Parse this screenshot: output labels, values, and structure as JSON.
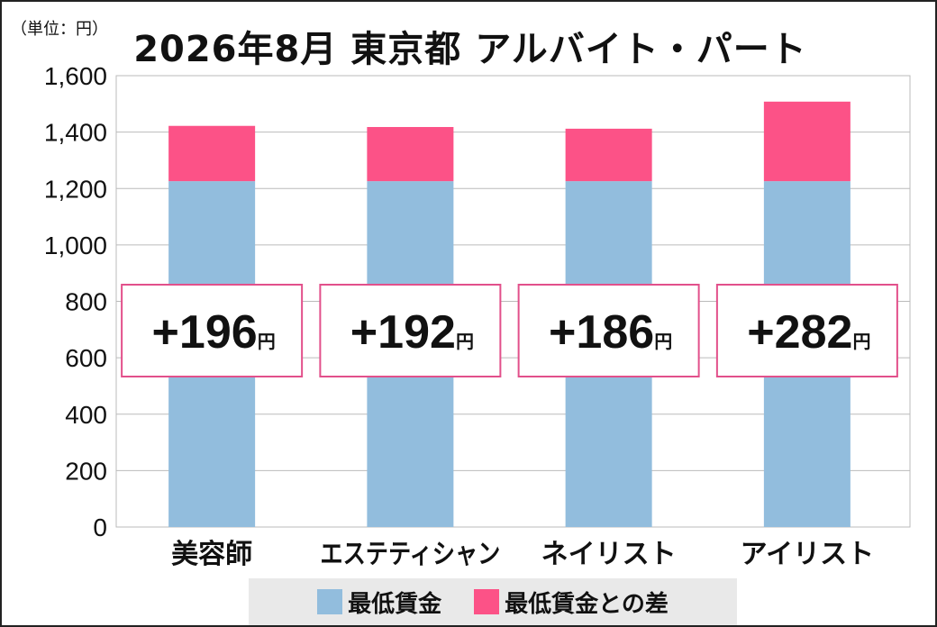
{
  "unit_label": "（単位：円）",
  "title": "2026年8月 東京都 アルバイト・パート",
  "colors": {
    "minimum_wage": "#92bddd",
    "difference": "#fc5287",
    "annotation_border": "#e2508b",
    "grid": "#bbbbbb"
  },
  "chart_data": {
    "type": "bar",
    "stacked": true,
    "categories": [
      "美容師",
      "エステティシャン",
      "ネイリスト",
      "アイリスト"
    ],
    "series": [
      {
        "name": "最低賃金",
        "values": [
          1226,
          1226,
          1226,
          1226
        ]
      },
      {
        "name": "最低賃金との差",
        "values": [
          196,
          192,
          186,
          282
        ]
      }
    ],
    "annotations": [
      {
        "prefix": "+",
        "value": "196",
        "suffix": "円"
      },
      {
        "prefix": "+",
        "value": "192",
        "suffix": "円"
      },
      {
        "prefix": "+",
        "value": "186",
        "suffix": "円"
      },
      {
        "prefix": "+",
        "value": "282",
        "suffix": "円"
      }
    ],
    "ylim": [
      0,
      1600
    ],
    "yticks": [
      0,
      200,
      400,
      600,
      800,
      1000,
      1200,
      1400,
      1600
    ],
    "ytick_labels": [
      "0",
      "200",
      "400",
      "600",
      "800",
      "1,000",
      "1,200",
      "1,400",
      "1,600"
    ],
    "grid": true,
    "legend_position": "bottom"
  },
  "legend": {
    "items": [
      "最低賃金",
      "最低賃金との差"
    ]
  }
}
